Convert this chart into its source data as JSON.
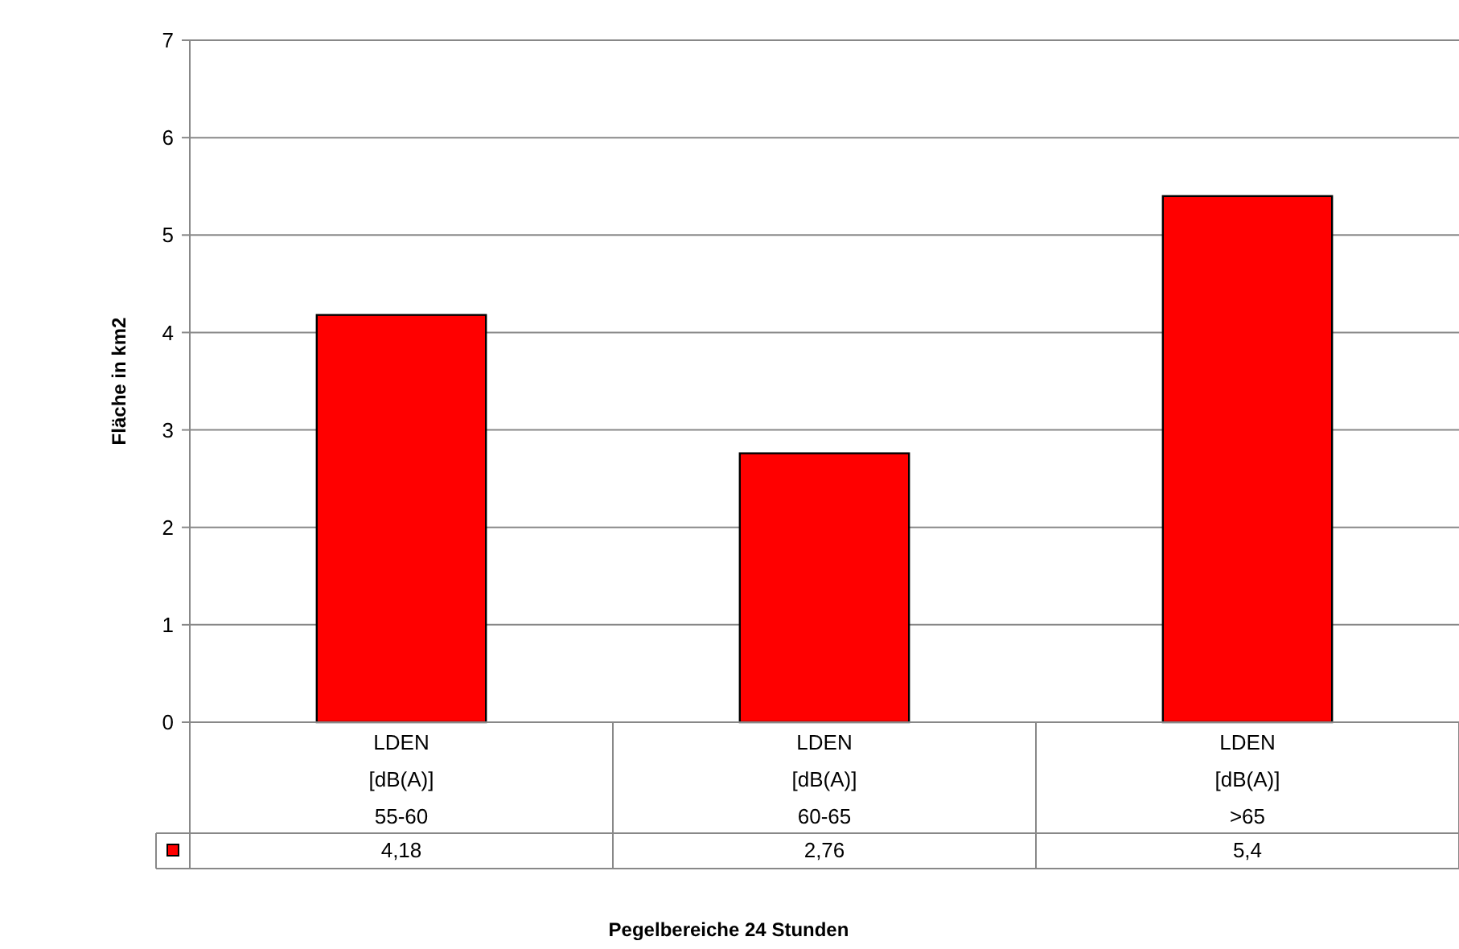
{
  "chart_data": {
    "type": "bar",
    "xlabel": "Pegelbereiche 24 Stunden",
    "ylabel": "Fläche in km2",
    "categories": [
      "LDEN [dB(A)] 55-60",
      "LDEN [dB(A)] 60-65",
      "LDEN [dB(A)] >65"
    ],
    "values": [
      4.18,
      2.76,
      5.4
    ],
    "value_labels": [
      "4,18",
      "2,76",
      "5,4"
    ],
    "color": "#ff0000",
    "ylim": [
      0,
      7
    ],
    "yticks": [
      0,
      1,
      2,
      3,
      4,
      5,
      6,
      7
    ],
    "grid": "y"
  }
}
